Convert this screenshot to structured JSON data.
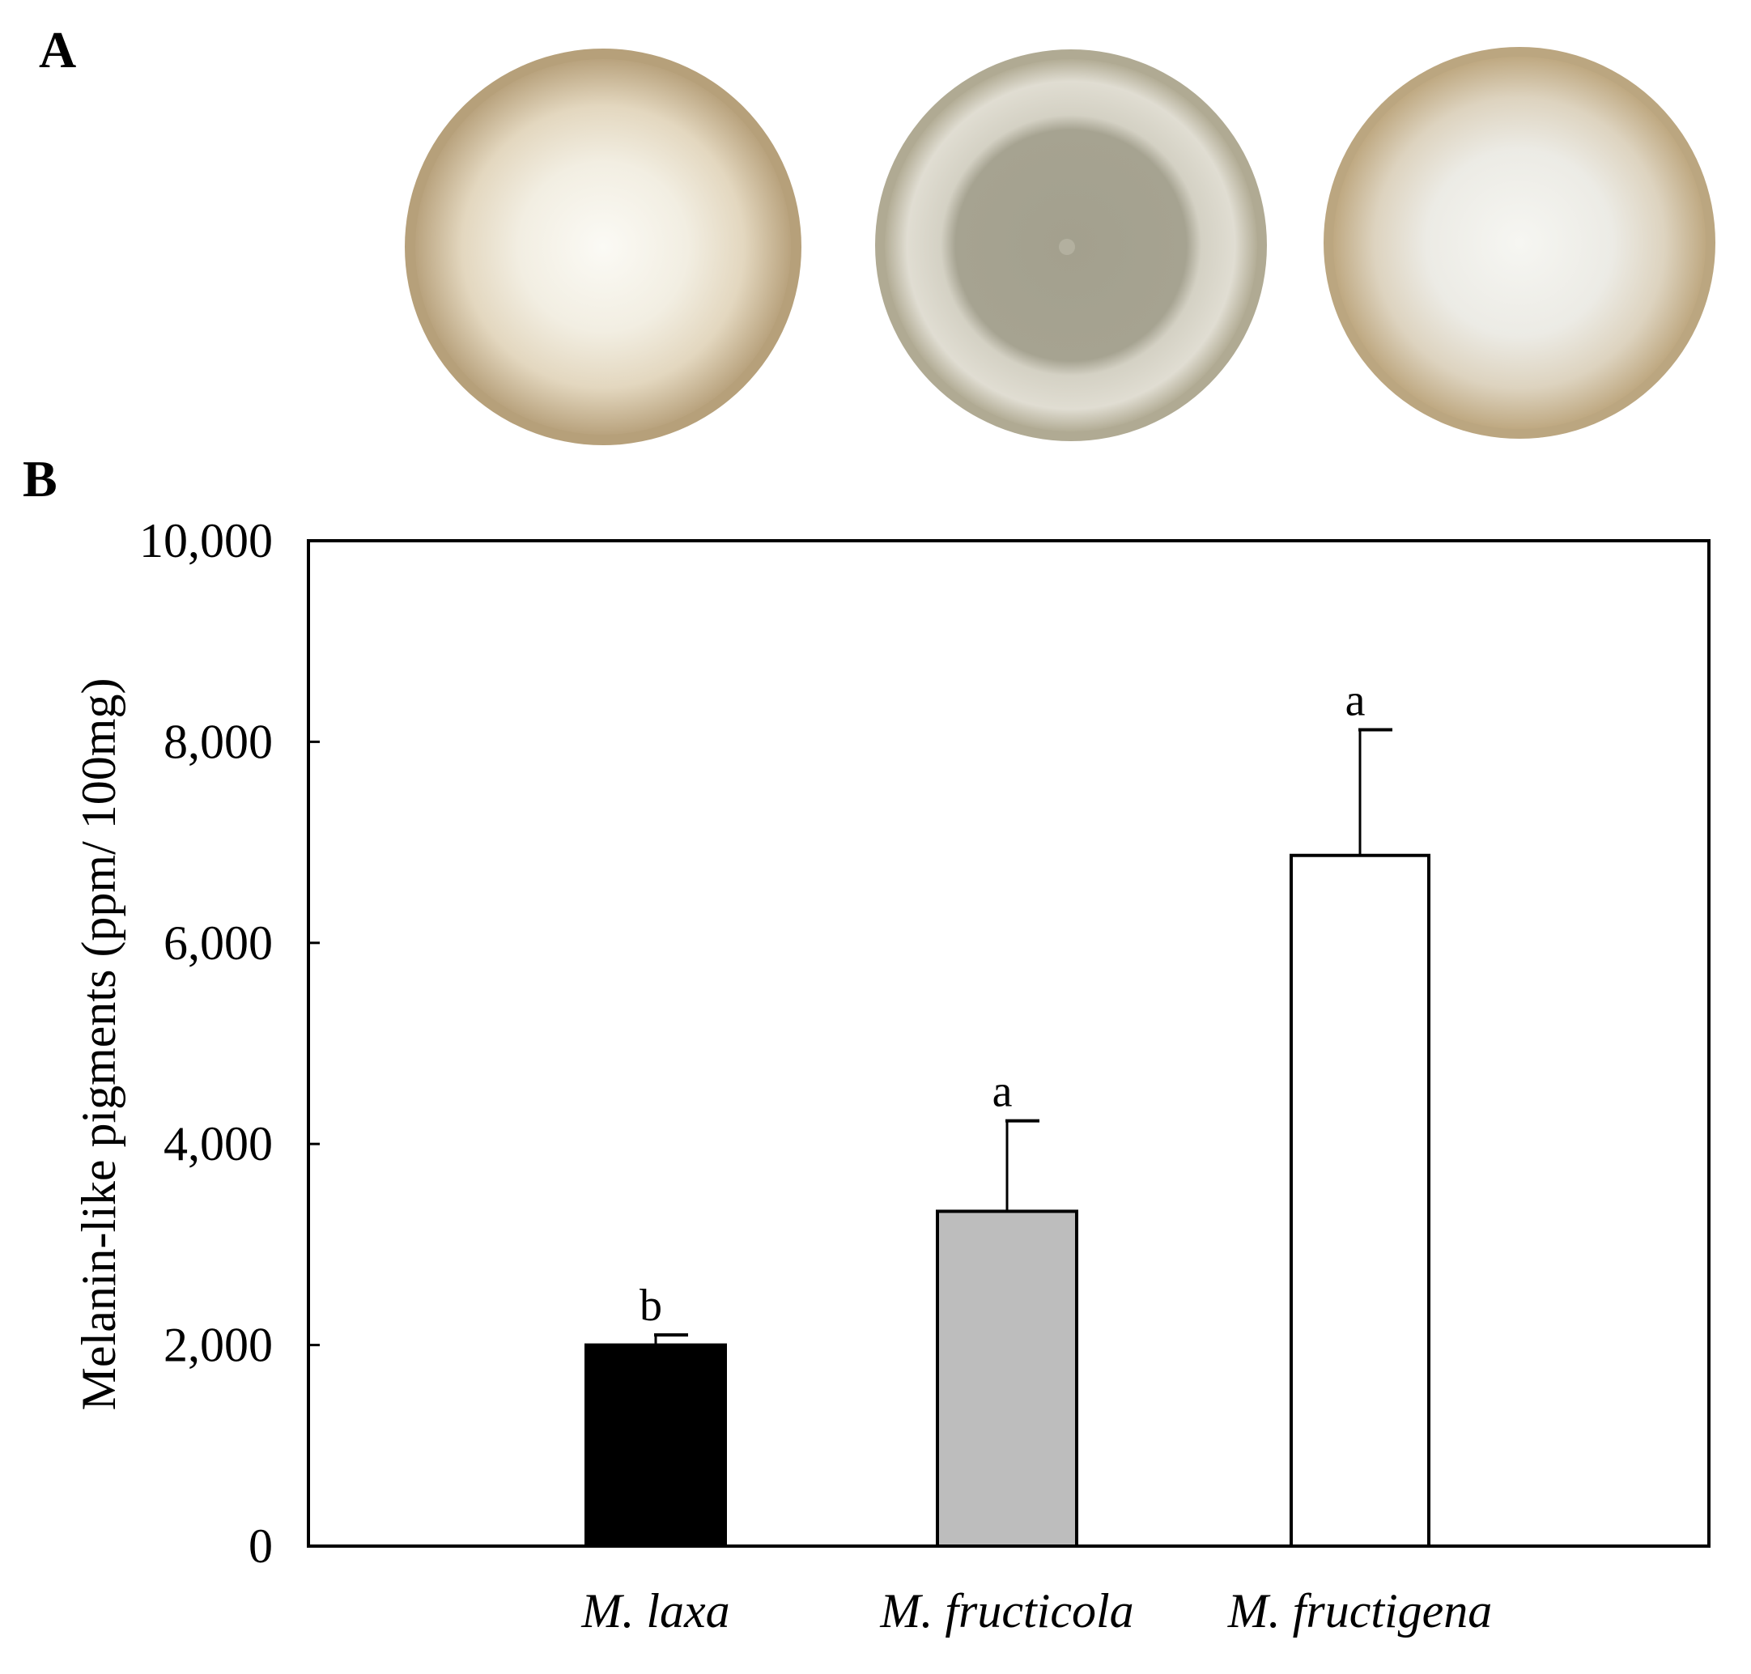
{
  "panels": {
    "a": "A",
    "b": "B"
  },
  "plates": [
    {
      "name": "M. laxa plate",
      "rim": "#b9a37e",
      "ring": "#d8c8a8",
      "center": "#f7f4ea"
    },
    {
      "name": "M. fructicola plate",
      "rim": "#b8b29b",
      "ring": "#d9d6c9",
      "center": "#a3a08e"
    },
    {
      "name": "M. fructigena plate",
      "rim": "#c1ad88",
      "ring": "#ddd7c8",
      "center": "#f2f1ec"
    }
  ],
  "chart_data": {
    "type": "bar",
    "ylabel": "Melanin-like pigments (ppm/ 100mg)",
    "ylim": [
      0,
      10000
    ],
    "yticks": [
      {
        "value": 0,
        "label": "0"
      },
      {
        "value": 2000,
        "label": "2,000"
      },
      {
        "value": 4000,
        "label": "4,000"
      },
      {
        "value": 6000,
        "label": "6,000"
      },
      {
        "value": 8000,
        "label": "8,000"
      },
      {
        "value": 10000,
        "label": "10,000"
      }
    ],
    "categories": [
      "M. laxa",
      "M. fructicola",
      "M. fructigena"
    ],
    "values": [
      2000,
      3330,
      6870
    ],
    "errors": [
      100,
      900,
      1250
    ],
    "significance": [
      "b",
      "a",
      "a"
    ],
    "colors": [
      "#000000",
      "#bdbdbd",
      "#ffffff"
    ]
  }
}
